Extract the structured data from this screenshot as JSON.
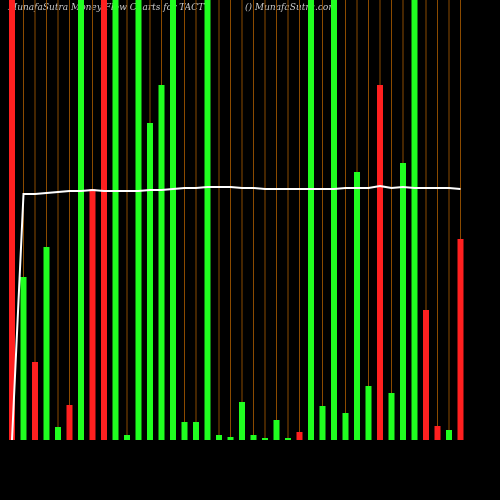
{
  "chart_data": {
    "type": "bar",
    "title": "MunafaSutra  Money Flow  Charts for TACT",
    "subtitle": "() MunafaSutra.com",
    "categories": [
      null,
      null,
      null,
      null,
      null,
      null,
      null,
      null,
      null,
      null,
      null,
      null,
      null,
      null,
      null,
      null,
      null,
      null,
      null,
      null,
      null,
      null,
      null,
      null,
      null,
      null,
      null,
      null,
      null,
      null,
      null,
      null,
      null,
      null,
      null,
      null,
      null,
      null,
      null,
      null
    ],
    "values": [
      440,
      163,
      78,
      193,
      13,
      35,
      440,
      251,
      440,
      440,
      5,
      440,
      317,
      355,
      440,
      18,
      18,
      440,
      5,
      3,
      38,
      5,
      2,
      20,
      2,
      8,
      440,
      34,
      440,
      27,
      268,
      54,
      355,
      47,
      277,
      440,
      130,
      14,
      10,
      201
    ],
    "colors": [
      "#ff2020",
      "#20ff20",
      "#ff2020",
      "#20ff20",
      "#20ff20",
      "#ff2020",
      "#20ff20",
      "#ff2020",
      "#ff2020",
      "#20ff20",
      "#20ff20",
      "#20ff20",
      "#20ff20",
      "#20ff20",
      "#20ff20",
      "#20ff20",
      "#20ff20",
      "#20ff20",
      "#20ff20",
      "#20ff20",
      "#20ff20",
      "#20ff20",
      "#20ff20",
      "#20ff20",
      "#20ff20",
      "#ff2020",
      "#20ff20",
      "#20ff20",
      "#20ff20",
      "#20ff20",
      "#20ff20",
      "#20ff20",
      "#ff2020",
      "#20ff20",
      "#20ff20",
      "#20ff20",
      "#ff2020",
      "#ff2020",
      "#20ff20",
      "#ff2020"
    ],
    "line": {
      "color": "#ffffff",
      "values": [
        0,
        246,
        246,
        247,
        248,
        249,
        249,
        250,
        249,
        249,
        249,
        249,
        250,
        250,
        251,
        252,
        252,
        253,
        253,
        253,
        252,
        252,
        251,
        251,
        251,
        251,
        251,
        251,
        251,
        252,
        252,
        252,
        254,
        252,
        253,
        252,
        252,
        252,
        252,
        251
      ]
    },
    "ylim": [
      0,
      440
    ],
    "grid": true,
    "grid_color": "#8a4a00"
  }
}
